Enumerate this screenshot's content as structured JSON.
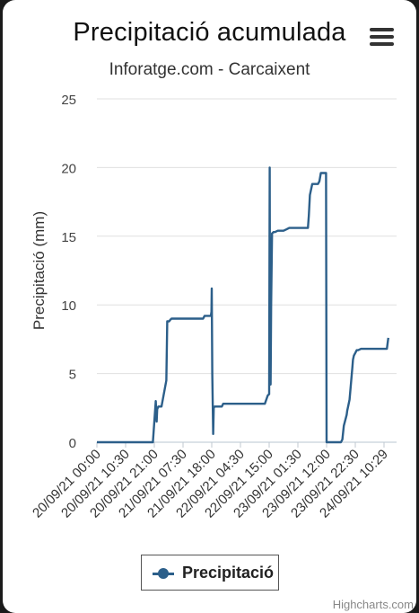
{
  "chart_data": {
    "type": "line",
    "title": "Precipitació acumulada",
    "subtitle": "Inforatge.com - Carcaixent",
    "xlabel": "",
    "ylabel": "Precipitació (mm)",
    "ylim": [
      0,
      25
    ],
    "yticks": [
      0,
      5,
      10,
      15,
      20,
      25
    ],
    "x_tick_labels": [
      "20/09/21 00:00",
      "20/09/21 10:30",
      "20/09/21 21:00",
      "21/09/21 07:30",
      "21/09/21 18:00",
      "22/09/21 04:30",
      "22/09/21 15:00",
      "23/09/21 01:30",
      "23/09/21 12:00",
      "23/09/21 22:30",
      "24/09/21 10:29"
    ],
    "x_tick_positions": [
      0,
      1,
      2,
      3,
      4,
      5,
      6,
      7,
      8,
      9,
      10
    ],
    "grid": true,
    "legend_position": "bottom-center",
    "series": [
      {
        "name": "Precipitació",
        "color": "#2c5f8a",
        "x": [
          0,
          1.95,
          2.0,
          2.05,
          2.08,
          2.1,
          2.14,
          2.17,
          2.2,
          2.25,
          2.42,
          2.45,
          2.52,
          2.55,
          2.6,
          2.85,
          2.9,
          3.7,
          3.75,
          3.97,
          3.99,
          4.0,
          4.02,
          4.05,
          4.07,
          4.1,
          4.15,
          4.2,
          4.35,
          4.4,
          5.0,
          5.5,
          5.85,
          5.9,
          5.95,
          6.0,
          6.02,
          6.03,
          6.05,
          6.07,
          6.1,
          6.15,
          6.2,
          6.3,
          6.5,
          6.6,
          6.7,
          6.8,
          7.3,
          7.35,
          7.38,
          7.42,
          7.5,
          7.7,
          7.75,
          7.8,
          7.95,
          7.98,
          8.0,
          8.5,
          8.55,
          8.6,
          8.65,
          8.7,
          8.72,
          8.75,
          8.8,
          8.9,
          8.92,
          8.95,
          9.0,
          9.05,
          9.1,
          9.2,
          9.25,
          9.3,
          9.4,
          9.6,
          10.1,
          10.15
        ],
        "y": [
          0,
          0,
          1.5,
          3.0,
          1.5,
          2.4,
          2.6,
          2.6,
          2.6,
          2.6,
          4.5,
          8.8,
          8.8,
          8.9,
          9.0,
          9.0,
          9.0,
          9.0,
          9.2,
          9.2,
          9.5,
          11.2,
          5.0,
          0.6,
          2.5,
          2.6,
          2.6,
          2.6,
          2.6,
          2.8,
          2.8,
          2.8,
          2.8,
          3.1,
          3.4,
          3.5,
          20.0,
          4.2,
          4.2,
          10.0,
          15.2,
          15.3,
          15.3,
          15.4,
          15.4,
          15.5,
          15.6,
          15.6,
          15.6,
          15.6,
          16.5,
          18.0,
          18.8,
          18.8,
          19.0,
          19.6,
          19.6,
          19.6,
          0,
          0,
          0.2,
          1.2,
          1.6,
          2.0,
          2.3,
          2.6,
          3.1,
          5.5,
          6.0,
          6.3,
          6.5,
          6.7,
          6.7,
          6.8,
          6.8,
          6.8,
          6.8,
          6.8,
          6.8,
          7.6
        ]
      }
    ]
  },
  "legend": {
    "label": "Precipitació"
  },
  "credits": "Highcharts.com"
}
